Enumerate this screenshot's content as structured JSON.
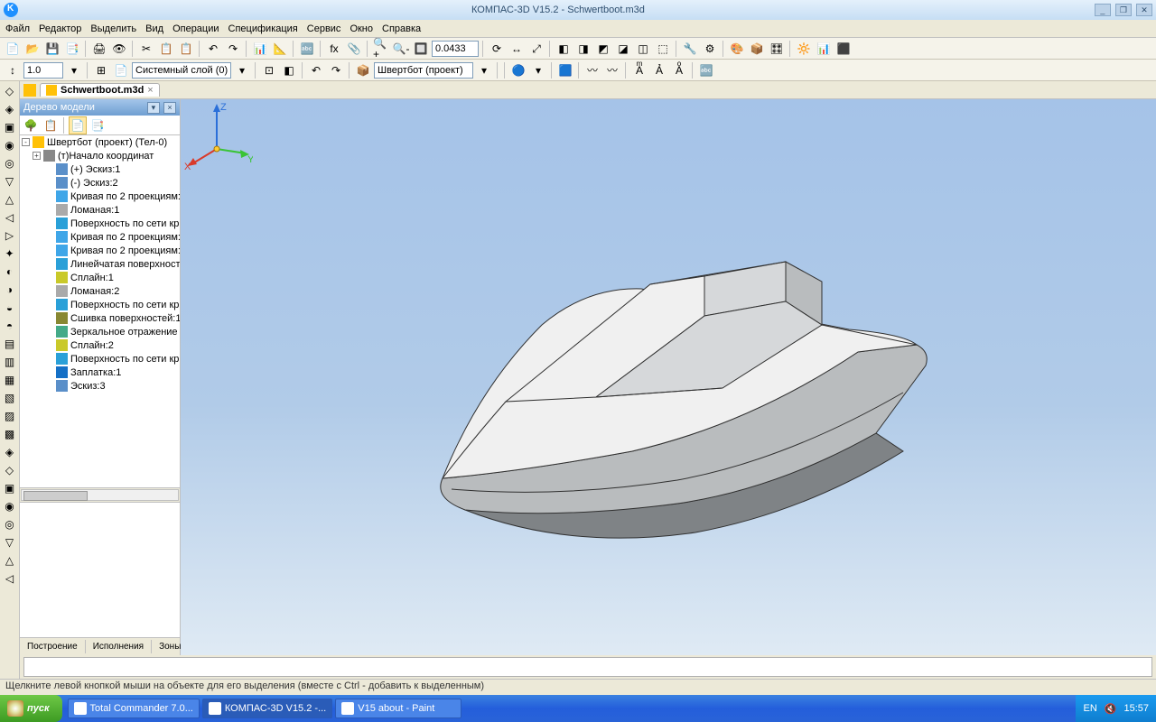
{
  "app": {
    "title": "КОМПАС-3D V15.2  -  Schwertboot.m3d"
  },
  "winbtns": {
    "min": "_",
    "max": "❐",
    "close": "✕"
  },
  "menus": [
    "Файл",
    "Редактор",
    "Выделить",
    "Вид",
    "Операции",
    "Спецификация",
    "Сервис",
    "Окно",
    "Справка"
  ],
  "zoom_value": "0.0433",
  "scale_value": "1.0",
  "layer_value": "Системный слой (0)",
  "part_value": "Швертбот (проект)",
  "doc_tab": "Schwertboot.m3d",
  "tree": {
    "title": "Дерево модели",
    "root": "Швертбот (проект) (Тел-0)",
    "nodes": [
      {
        "ic": "ic-origin",
        "t": "(т)Начало координат",
        "exp": "+",
        "ind": 1
      },
      {
        "ic": "ic-sketch",
        "t": "(+) Эскиз:1",
        "ind": 2
      },
      {
        "ic": "ic-sketch",
        "t": "(-) Эскиз:2",
        "ind": 2
      },
      {
        "ic": "ic-curve",
        "t": "Кривая по 2 проекциям:",
        "ind": 2
      },
      {
        "ic": "ic-line",
        "t": "Ломаная:1",
        "ind": 2
      },
      {
        "ic": "ic-surf",
        "t": "Поверхность по сети кр",
        "ind": 2
      },
      {
        "ic": "ic-curve",
        "t": "Кривая по 2 проекциям:",
        "ind": 2
      },
      {
        "ic": "ic-curve",
        "t": "Кривая по 2 проекциям:",
        "ind": 2
      },
      {
        "ic": "ic-surf",
        "t": "Линейчатая поверхност",
        "ind": 2
      },
      {
        "ic": "ic-spline",
        "t": "Сплайн:1",
        "ind": 2
      },
      {
        "ic": "ic-line",
        "t": "Ломаная:2",
        "ind": 2
      },
      {
        "ic": "ic-surf",
        "t": "Поверхность по сети кр",
        "ind": 2
      },
      {
        "ic": "ic-sew",
        "t": "Сшивка поверхностей:1",
        "ind": 2
      },
      {
        "ic": "ic-mirror",
        "t": "Зеркальное отражение",
        "ind": 2
      },
      {
        "ic": "ic-spline",
        "t": "Сплайн:2",
        "ind": 2
      },
      {
        "ic": "ic-surf",
        "t": "Поверхность по сети кр",
        "ind": 2
      },
      {
        "ic": "ic-patch",
        "t": "Заплатка:1",
        "ind": 2
      },
      {
        "ic": "ic-sketch",
        "t": "Эскиз:3",
        "ind": 2
      }
    ],
    "tabs": [
      "Построение",
      "Исполнения",
      "Зоны"
    ]
  },
  "triad": {
    "x": "X",
    "y": "Y",
    "z": "Z"
  },
  "status": "Щелкните левой кнопкой мыши на объекте для его выделения (вместе с Ctrl - добавить к выделенным)",
  "taskbar": {
    "start": "пуск",
    "tasks": [
      {
        "t": "Total Commander 7.0...",
        "a": false
      },
      {
        "t": "КОМПАС-3D V15.2 -...",
        "a": true
      },
      {
        "t": "V15 about - Paint",
        "a": false
      }
    ],
    "lang": "EN",
    "time": "15:57"
  },
  "colors": {
    "viewport_top": "#a5c3e8",
    "viewport_bottom": "#dfeaf4",
    "boat_deck": "#f0f0f0",
    "boat_cabin": "#d6d8da",
    "boat_hull": "#b9bcbe",
    "boat_bottom": "#7f8386",
    "edge": "#303030",
    "axis_x": "#d93a2a",
    "axis_y": "#39c435",
    "axis_z": "#2a6fd9"
  },
  "tb1_icons": [
    "📄",
    "📂",
    "💾",
    "📑",
    "|",
    "🖨",
    "👁",
    "|",
    "✂",
    "📋",
    "📋",
    "|",
    "↶",
    "↷",
    "|",
    "📊",
    "📐",
    "|",
    "🔤",
    "|",
    "fx",
    "📎",
    "|",
    "🔍+",
    "🔍-",
    "🔲",
    "z",
    "|",
    "⟳",
    "↔",
    "⤢",
    "|",
    "◧",
    "◨",
    "◩",
    "◪",
    "◫",
    "⬚",
    "|",
    "🔧",
    "⚙",
    "|",
    "🎨",
    "📦",
    "🎛",
    "|",
    "🔆",
    "📊",
    "⬛"
  ],
  "tb2_icons": [
    "↕",
    "sc",
    "▾",
    "|",
    "⊞",
    "📄",
    "ly",
    "▾",
    "|",
    "⊡",
    "◧",
    "|",
    "↶",
    "↷",
    "|",
    "📦",
    "pt",
    "▾",
    "|",
    "|",
    "🔵",
    "▾",
    "|",
    "🟦",
    "|",
    "〰",
    "〰",
    "|",
    "Aͫ",
    "Ả",
    "Aͦ",
    "|",
    "🔤"
  ],
  "left_icons": [
    "◇",
    "◈",
    "▣",
    "◉",
    "◎",
    "▽",
    "△",
    "◁",
    "▷",
    "✦",
    "◐",
    "◑",
    "◒",
    "◓",
    "▤",
    "▥",
    "▦",
    "▧",
    "▨",
    "▩",
    "◈",
    "◇",
    "▣",
    "◉",
    "◎",
    "▽",
    "△",
    "◁"
  ]
}
